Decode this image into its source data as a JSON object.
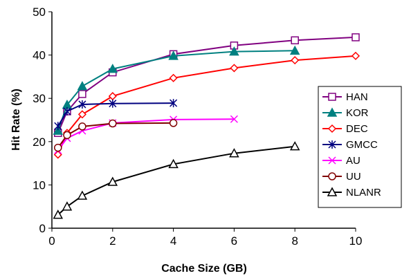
{
  "chart_data": {
    "type": "line",
    "xlabel": "Cache Size (GB)",
    "ylabel": "Hit Rate (%)",
    "xlim": [
      0,
      10
    ],
    "ylim": [
      0,
      50
    ],
    "x_ticks": [
      "0",
      "2",
      "4",
      "6",
      "8",
      "10"
    ],
    "y_ticks": [
      "0",
      "10",
      "20",
      "30",
      "40",
      "50"
    ],
    "grid": false,
    "legend_position": "right",
    "series": [
      {
        "name": "HAN",
        "color": "#800080",
        "marker": "square",
        "x": [
          0.2,
          0.5,
          1,
          2,
          4,
          6,
          8,
          10
        ],
        "y": [
          22,
          27,
          31,
          36,
          40.2,
          42.2,
          43.4,
          44.1
        ]
      },
      {
        "name": "KOR",
        "color": "#008080",
        "marker": "triangle-filled",
        "x": [
          0.2,
          0.5,
          1,
          2,
          4,
          6,
          8
        ],
        "y": [
          22.5,
          28.5,
          32.8,
          36.8,
          39.8,
          40.8,
          41
        ]
      },
      {
        "name": "DEC",
        "color": "#ff0000",
        "marker": "diamond",
        "x": [
          0.2,
          0.5,
          1,
          2,
          4,
          6,
          8,
          10
        ],
        "y": [
          17,
          22,
          26.3,
          30.5,
          34.7,
          37,
          38.8,
          39.8
        ]
      },
      {
        "name": "GMCC",
        "color": "#000080",
        "marker": "asterisk",
        "x": [
          0.2,
          0.5,
          1,
          2,
          4
        ],
        "y": [
          23.6,
          27,
          28.6,
          28.8,
          28.9
        ]
      },
      {
        "name": "AU",
        "color": "#ff00ff",
        "marker": "x",
        "x": [
          0.2,
          0.5,
          1,
          2,
          4,
          6
        ],
        "y": [
          18,
          20.8,
          22.5,
          24.3,
          25.1,
          25.2
        ]
      },
      {
        "name": "UU",
        "color": "#800000",
        "marker": "circle",
        "x": [
          0.2,
          0.5,
          1,
          2,
          4
        ],
        "y": [
          18.6,
          21.5,
          23.5,
          24.2,
          24.3
        ]
      },
      {
        "name": "NLANR",
        "color": "#000000",
        "marker": "triangle",
        "x": [
          0.2,
          0.5,
          1,
          2,
          4,
          6,
          8
        ],
        "y": [
          3.1,
          5,
          7.5,
          10.7,
          14.8,
          17.3,
          18.9
        ]
      }
    ]
  }
}
